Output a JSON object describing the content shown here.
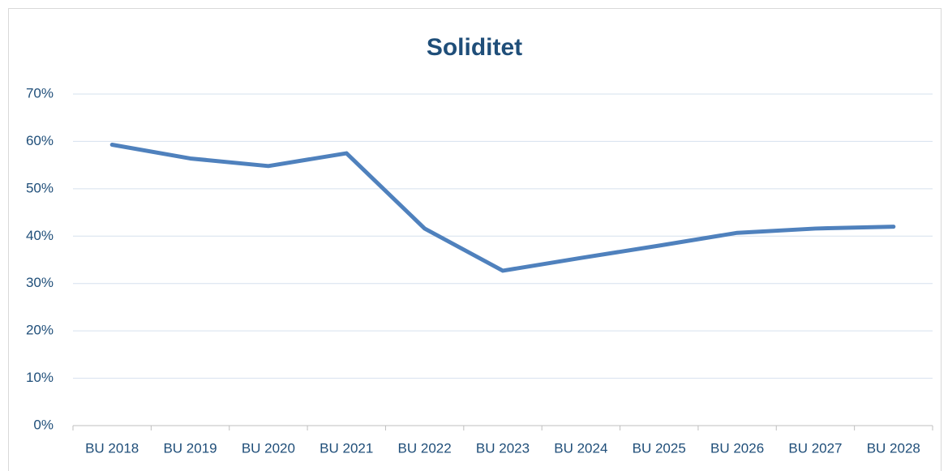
{
  "chart_data": {
    "type": "line",
    "title": "Soliditet",
    "categories": [
      "BU 2018",
      "BU 2019",
      "BU 2020",
      "BU 2021",
      "BU 2022",
      "BU 2023",
      "BU 2024",
      "BU 2025",
      "BU 2026",
      "BU 2027",
      "BU 2028"
    ],
    "series": [
      {
        "name": "Soliditet",
        "color": "#4f81bd",
        "values": [
          59.3,
          56.4,
          54.8,
          57.5,
          41.6,
          32.7,
          35.4,
          38,
          40.7,
          41.6,
          42
        ]
      }
    ],
    "ylim": [
      0,
      70
    ],
    "yticks": [
      {
        "value": 0,
        "label": "0%"
      },
      {
        "value": 10,
        "label": "10%"
      },
      {
        "value": 20,
        "label": "20%"
      },
      {
        "value": 30,
        "label": "30%"
      },
      {
        "value": 40,
        "label": "40%"
      },
      {
        "value": 50,
        "label": "50%"
      },
      {
        "value": 60,
        "label": "60%"
      },
      {
        "value": 70,
        "label": "70%"
      }
    ],
    "grid": true
  }
}
